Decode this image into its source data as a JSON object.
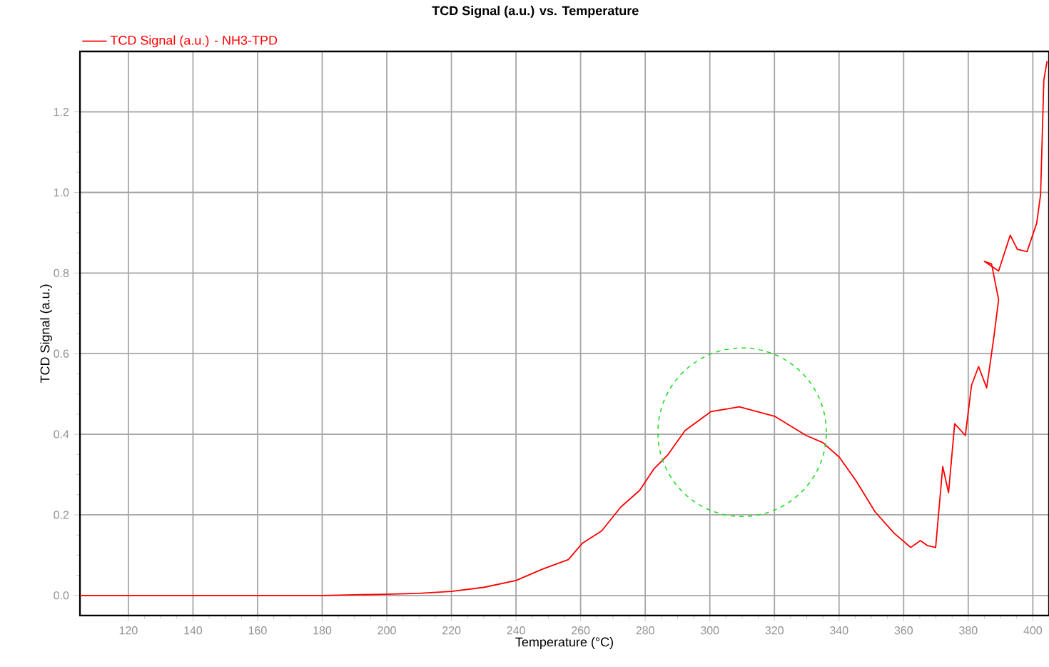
{
  "chart_data": {
    "type": "line",
    "title": "TCD Signal (a.u.) vs. Temperature",
    "xlabel": "Temperature (°C)",
    "ylabel": "TCD Signal (a.u.)",
    "xlim": [
      105,
      405
    ],
    "ylim": [
      -0.05,
      1.35
    ],
    "xticks": [
      120,
      140,
      160,
      180,
      200,
      220,
      240,
      260,
      280,
      300,
      320,
      340,
      360,
      380,
      400
    ],
    "yticks": [
      {
        "value": 0,
        "label": "0.0"
      },
      {
        "value": 0.2,
        "label": "0.2"
      },
      {
        "value": 0.4,
        "label": "0.4"
      },
      {
        "value": 0.6,
        "label": "0.6"
      },
      {
        "value": 0.8,
        "label": "0.8"
      },
      {
        "value": 1.0,
        "label": "1.0"
      },
      {
        "value": 1.2,
        "label": "1.2"
      }
    ],
    "grid": true,
    "legend": "top left",
    "line_style": "solid",
    "series": [
      {
        "name": "TCD Signal (a.u.) - NH3-TPD",
        "color": "#ff0000",
        "x": [
          105,
          150,
          180,
          200,
          210,
          220,
          230,
          240,
          248.1,
          256.2,
          260.6,
          266.5,
          272.4,
          278.3,
          282.7,
          287.1,
          292.3,
          300.3,
          309.1,
          320.2,
          329.8,
          335,
          340.1,
          345.3,
          351.2,
          357.1,
          362.2,
          365.2,
          367.3,
          369.9,
          372.1,
          373.9,
          375.8,
          379.1,
          381,
          383.2,
          385.7,
          387.9,
          389.4,
          387.2,
          385,
          389.4,
          393,
          395.2,
          398.2,
          401.2,
          402.4,
          403.4,
          404.4
        ],
        "values": [
          0.0,
          0.0,
          0.0,
          0.003,
          0.005,
          0.01,
          0.02,
          0.037,
          0.065,
          0.089,
          0.13,
          0.16,
          0.219,
          0.261,
          0.314,
          0.35,
          0.409,
          0.456,
          0.468,
          0.444,
          0.397,
          0.379,
          0.343,
          0.284,
          0.207,
          0.154,
          0.119,
          0.136,
          0.124,
          0.119,
          0.32,
          0.255,
          0.426,
          0.397,
          0.521,
          0.568,
          0.515,
          0.639,
          0.734,
          0.823,
          0.829,
          0.805,
          0.894,
          0.859,
          0.853,
          0.924,
          0.995,
          1.279,
          1.326
        ]
      }
    ]
  }
}
